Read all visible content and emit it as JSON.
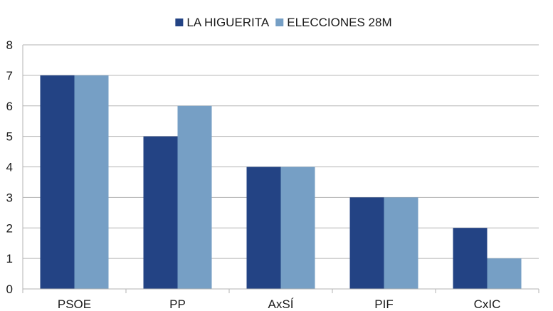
{
  "chart_data": {
    "type": "bar",
    "categories": [
      "PSOE",
      "PP",
      "AxSÍ",
      "PIF",
      "CxIC"
    ],
    "series": [
      {
        "name": "LA HIGUERITA",
        "values": [
          7,
          5,
          4,
          3,
          2
        ]
      },
      {
        "name": "ELECCIONES 28M",
        "values": [
          7,
          6,
          4,
          3,
          1
        ]
      }
    ],
    "colors": [
      "#234384",
      "#769fc5"
    ],
    "ylim": [
      0,
      8
    ],
    "yticks": [
      "0",
      "1",
      "2",
      "3",
      "4",
      "5",
      "6",
      "7",
      "8"
    ],
    "grid": true,
    "legend_position": "top-center"
  }
}
